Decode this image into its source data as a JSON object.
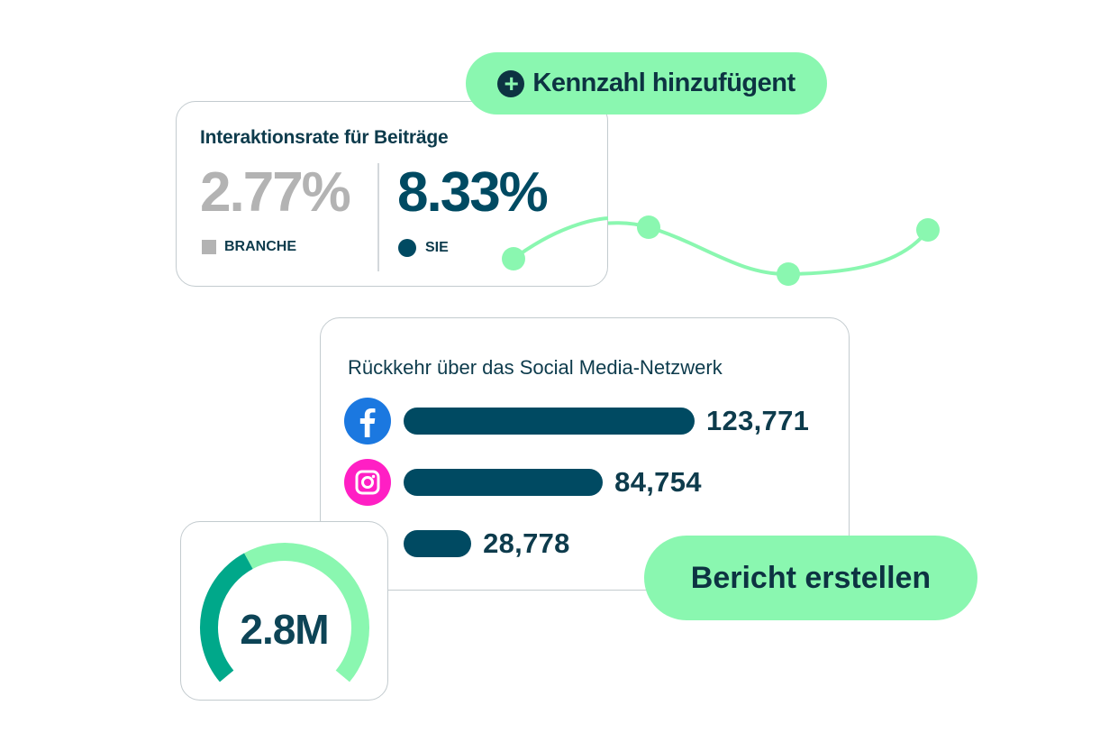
{
  "add_metric_button": {
    "label": "Kennzahl hinzufügent",
    "icon": "plus-circle-icon"
  },
  "engagement_card": {
    "title": "Interaktionsrate für Beiträge",
    "industry": {
      "value": "2.77%",
      "label": "BRANCHE",
      "color": "#b3b3b3"
    },
    "you": {
      "value": "8.33%",
      "label": "SIE",
      "color": "#004a62"
    }
  },
  "trend_line": {
    "color": "#8af7b0",
    "points": 4
  },
  "network_card": {
    "title": "Rückkehr über das Social Media-Netzwerk",
    "rows": [
      {
        "network": "Facebook",
        "icon": "facebook-icon",
        "value": 123771,
        "label": "123,771"
      },
      {
        "network": "Instagram",
        "icon": "instagram-icon",
        "value": 84754,
        "label": "84,754"
      },
      {
        "network": "",
        "icon": "",
        "value": 28778,
        "label": "28,778"
      }
    ],
    "bar_color": "#004a62"
  },
  "gauge_card": {
    "value": "2.8M",
    "fill_fraction": 0.39,
    "fill_color": "#00a88a",
    "track_color": "#8af7b0"
  },
  "report_button": {
    "label": "Bericht erstellen"
  },
  "colors": {
    "accent": "#8af7b0",
    "primary": "#004a62",
    "text": "#0d3b4c"
  }
}
